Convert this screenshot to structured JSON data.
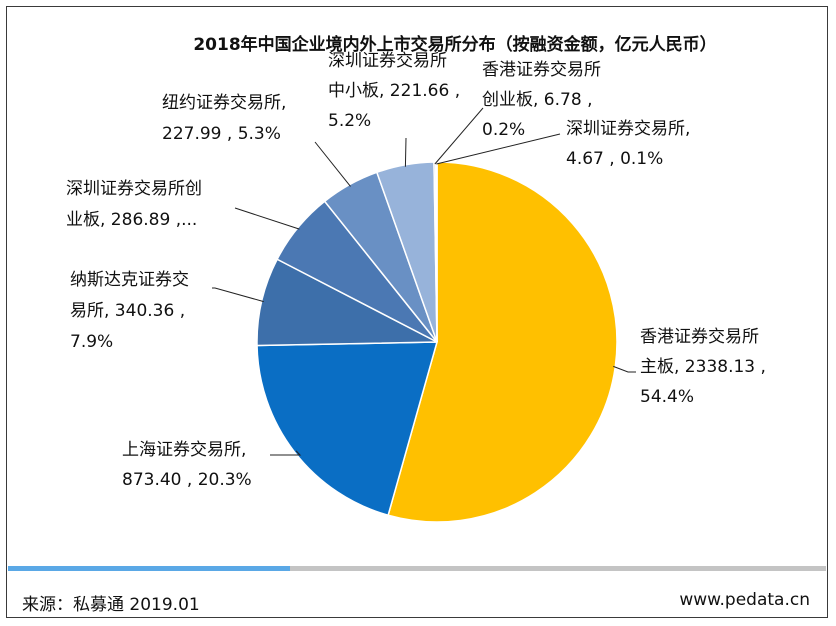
{
  "chart_data": {
    "type": "pie",
    "title": "2018年中国企业境内外上市交易所分布（按融资金额，亿元人民币）",
    "unit": "亿元人民币",
    "slices": [
      {
        "name": "香港证券交易所主板",
        "value": 2338.13,
        "percent": 54.4,
        "color": "#FFC000",
        "label_lines": [
          "香港证券交易所",
          "主板, 2338.13 ,",
          "54.4%"
        ]
      },
      {
        "name": "上海证券交易所",
        "value": 873.4,
        "percent": 20.3,
        "color": "#0A6EC4",
        "label_lines": [
          "上海证券交易所,",
          "873.40 , 20.3%"
        ]
      },
      {
        "name": "纳斯达克证券交易所",
        "value": 340.36,
        "percent": 7.9,
        "color": "#3D6FAA",
        "label_lines": [
          "纳斯达克证券交",
          "易所, 340.36 ,",
          "7.9%"
        ]
      },
      {
        "name": "深圳证券交易所创业板",
        "value": 286.89,
        "percent": 6.7,
        "color": "#4B78B3",
        "label_lines": [
          "深圳证券交易所创",
          "业板, 286.89 ,..."
        ]
      },
      {
        "name": "纽约证券交易所",
        "value": 227.99,
        "percent": 5.3,
        "color": "#6990C4",
        "label_lines": [
          "纽约证券交易所,",
          "227.99 , 5.3%"
        ]
      },
      {
        "name": "深圳证券交易所中小板",
        "value": 221.66,
        "percent": 5.2,
        "color": "#97B3DA",
        "label_lines": [
          "深圳证券交易所",
          "中小板, 221.66 ,",
          "5.2%"
        ]
      },
      {
        "name": "香港证券交易所创业板",
        "value": 6.78,
        "percent": 0.2,
        "color": "#BBBBBB",
        "label_lines": [
          "香港证券交易所",
          "创业板, 6.78 ,",
          "0.2%"
        ]
      },
      {
        "name": "深圳证券交易所",
        "value": 4.67,
        "percent": 0.1,
        "color": "#D9D9D9",
        "label_lines": [
          "深圳证券交易所,",
          "4.67 , 0.1%"
        ]
      }
    ]
  },
  "footer": {
    "source": "来源：私募通 2019.01",
    "website": "www.pedata.cn"
  }
}
